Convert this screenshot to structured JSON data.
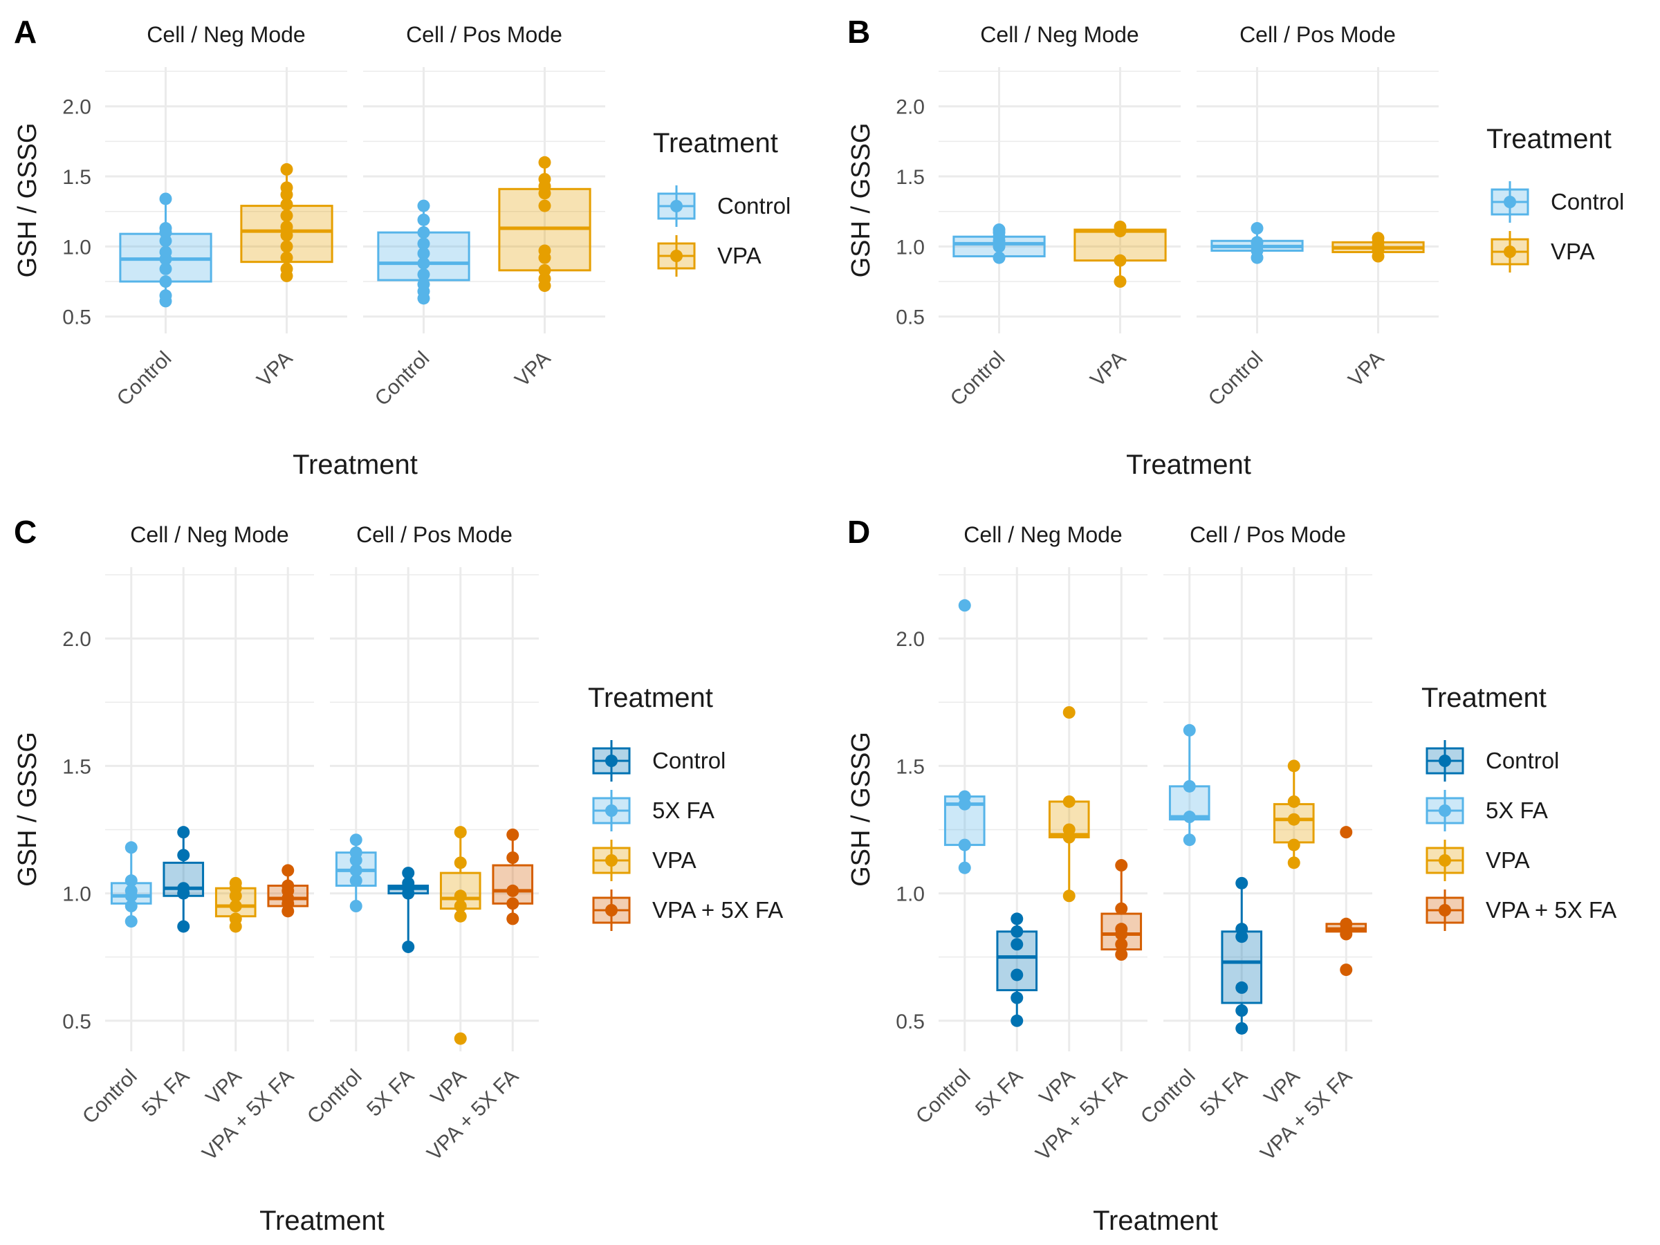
{
  "colors": {
    "control_light": "#56B4E9",
    "vpa": "#E69F00",
    "control_dark": "#0072B2",
    "vpa_fa": "#D55E00",
    "grid": "#EBEBEB",
    "text": "#1a1a1a",
    "tick": "#4d4d4d"
  },
  "chart_data": [
    {
      "type": "boxplot",
      "panel_label": "A",
      "ylabel": "GSH / GSSG",
      "xlabel": "Treatment",
      "ylim": [
        0.38,
        2.28
      ],
      "yticks": [
        "0.5",
        "1.0",
        "1.5",
        "2.0"
      ],
      "legend": {
        "title": "Treatment",
        "entries": [
          "Control",
          "VPA"
        ]
      },
      "facets": [
        {
          "title": "Cell / Neg Mode",
          "categories": [
            "Control",
            "VPA"
          ],
          "groups": [
            {
              "color": "control_light",
              "q1": 0.75,
              "median": 0.91,
              "q3": 1.09,
              "wlo": 0.61,
              "whi": 1.34,
              "points": [
                0.61,
                0.65,
                0.75,
                0.84,
                0.91,
                0.96,
                1.04,
                1.1,
                1.13,
                1.34
              ]
            },
            {
              "color": "vpa",
              "q1": 0.89,
              "median": 1.11,
              "q3": 1.29,
              "wlo": 0.79,
              "whi": 1.55,
              "points": [
                0.79,
                0.84,
                0.92,
                1.0,
                1.08,
                1.14,
                1.22,
                1.3,
                1.37,
                1.42,
                1.55
              ]
            }
          ]
        },
        {
          "title": "Cell / Pos Mode",
          "categories": [
            "Control",
            "VPA"
          ],
          "groups": [
            {
              "color": "control_light",
              "q1": 0.76,
              "median": 0.88,
              "q3": 1.1,
              "wlo": 0.63,
              "whi": 1.29,
              "points": [
                0.63,
                0.68,
                0.73,
                0.8,
                0.88,
                0.95,
                1.02,
                1.1,
                1.19,
                1.29
              ]
            },
            {
              "color": "vpa",
              "q1": 0.83,
              "median": 1.13,
              "q3": 1.41,
              "wlo": 0.72,
              "whi": 1.6,
              "points": [
                0.72,
                0.77,
                0.83,
                0.92,
                0.97,
                1.29,
                1.38,
                1.43,
                1.48,
                1.6
              ]
            }
          ]
        }
      ]
    },
    {
      "type": "boxplot",
      "panel_label": "B",
      "ylabel": "GSH / GSSG",
      "xlabel": "Treatment",
      "ylim": [
        0.38,
        2.28
      ],
      "yticks": [
        "0.5",
        "1.0",
        "1.5",
        "2.0"
      ],
      "legend": {
        "title": "Treatment",
        "entries": [
          "Control",
          "VPA"
        ]
      },
      "facets": [
        {
          "title": "Cell / Neg Mode",
          "categories": [
            "Control",
            "VPA"
          ],
          "groups": [
            {
              "color": "control_light",
              "q1": 0.93,
              "median": 1.02,
              "q3": 1.07,
              "wlo": 0.92,
              "whi": 1.12,
              "points": [
                0.92,
                1.0,
                1.04,
                1.07,
                1.1,
                1.12
              ]
            },
            {
              "color": "vpa",
              "q1": 0.9,
              "median": 1.11,
              "q3": 1.12,
              "wlo": 0.75,
              "whi": 1.14,
              "points": [
                0.75,
                0.9,
                1.11,
                1.14
              ]
            }
          ]
        },
        {
          "title": "Cell / Pos Mode",
          "categories": [
            "Control",
            "VPA"
          ],
          "groups": [
            {
              "color": "control_light",
              "q1": 0.97,
              "median": 1.0,
              "q3": 1.04,
              "wlo": 0.92,
              "whi": 1.13,
              "points": [
                0.92,
                0.97,
                1.0,
                1.03,
                1.13
              ]
            },
            {
              "color": "vpa",
              "q1": 0.96,
              "median": 0.99,
              "q3": 1.03,
              "wlo": 0.93,
              "whi": 1.06,
              "points": [
                0.93,
                0.97,
                1.0,
                1.03,
                1.06
              ]
            }
          ]
        }
      ]
    },
    {
      "type": "boxplot",
      "panel_label": "C",
      "ylabel": "GSH / GSSG",
      "xlabel": "Treatment",
      "ylim": [
        0.38,
        2.28
      ],
      "yticks": [
        "0.5",
        "1.0",
        "1.5",
        "2.0"
      ],
      "legend": {
        "title": "Treatment",
        "entries": [
          "Control",
          "5X FA",
          "VPA",
          "VPA + 5X FA"
        ]
      },
      "facets": [
        {
          "title": "Cell / Neg Mode",
          "categories": [
            "Control",
            "5X FA",
            "VPA",
            "VPA + 5X FA"
          ],
          "groups": [
            {
              "color": "control_light",
              "q1": 0.96,
              "median": 0.99,
              "q3": 1.04,
              "wlo": 0.89,
              "whi": 1.18,
              "points": [
                0.89,
                0.95,
                0.99,
                1.01,
                1.05,
                1.18
              ]
            },
            {
              "color": "control_dark",
              "q1": 0.99,
              "median": 1.02,
              "q3": 1.12,
              "wlo": 0.87,
              "whi": 1.24,
              "points": [
                0.87,
                1.0,
                1.02,
                1.15,
                1.24
              ]
            },
            {
              "color": "vpa",
              "q1": 0.91,
              "median": 0.95,
              "q3": 1.02,
              "wlo": 0.87,
              "whi": 1.04,
              "points": [
                0.87,
                0.9,
                0.95,
                0.99,
                1.02,
                1.04
              ]
            },
            {
              "color": "vpa_fa",
              "q1": 0.95,
              "median": 0.98,
              "q3": 1.03,
              "wlo": 0.93,
              "whi": 1.09,
              "points": [
                0.93,
                0.96,
                0.98,
                1.01,
                1.03,
                1.09
              ]
            }
          ]
        },
        {
          "title": "Cell / Pos Mode",
          "categories": [
            "Control",
            "5X FA",
            "VPA",
            "VPA + 5X FA"
          ],
          "groups": [
            {
              "color": "control_light",
              "q1": 1.03,
              "median": 1.09,
              "q3": 1.16,
              "wlo": 0.95,
              "whi": 1.21,
              "points": [
                0.95,
                1.05,
                1.09,
                1.13,
                1.16,
                1.21
              ]
            },
            {
              "color": "control_dark",
              "q1": 1.0,
              "median": 1.02,
              "q3": 1.03,
              "wlo": 0.79,
              "whi": 1.08,
              "points": [
                0.79,
                1.0,
                1.02,
                1.04,
                1.08
              ]
            },
            {
              "color": "vpa",
              "q1": 0.94,
              "median": 0.98,
              "q3": 1.08,
              "wlo": 0.91,
              "whi": 1.24,
              "points": [
                0.43,
                0.91,
                0.95,
                0.99,
                1.12,
                1.24
              ]
            },
            {
              "color": "vpa_fa",
              "q1": 0.96,
              "median": 1.01,
              "q3": 1.11,
              "wlo": 0.9,
              "whi": 1.23,
              "points": [
                0.9,
                0.96,
                1.01,
                1.14,
                1.23
              ]
            }
          ]
        }
      ]
    },
    {
      "type": "boxplot",
      "panel_label": "D",
      "ylabel": "GSH / GSSG",
      "xlabel": "Treatment",
      "ylim": [
        0.38,
        2.28
      ],
      "yticks": [
        "0.5",
        "1.0",
        "1.5",
        "2.0"
      ],
      "legend": {
        "title": "Treatment",
        "entries": [
          "Control",
          "5X FA",
          "VPA",
          "VPA + 5X FA"
        ]
      },
      "facets": [
        {
          "title": "Cell / Neg Mode",
          "categories": [
            "Control",
            "5X FA",
            "VPA",
            "VPA + 5X FA"
          ],
          "groups": [
            {
              "color": "control_light",
              "q1": 1.19,
              "median": 1.35,
              "q3": 1.38,
              "wlo": 1.1,
              "whi": 1.38,
              "points": [
                1.1,
                1.19,
                1.35,
                1.38,
                2.13
              ]
            },
            {
              "color": "control_dark",
              "q1": 0.62,
              "median": 0.75,
              "q3": 0.85,
              "wlo": 0.5,
              "whi": 0.9,
              "points": [
                0.5,
                0.59,
                0.68,
                0.8,
                0.85,
                0.9
              ]
            },
            {
              "color": "vpa",
              "q1": 1.22,
              "median": 1.23,
              "q3": 1.36,
              "wlo": 0.99,
              "whi": 1.36,
              "points": [
                0.99,
                1.22,
                1.25,
                1.36,
                1.71
              ]
            },
            {
              "color": "vpa_fa",
              "q1": 0.78,
              "median": 0.84,
              "q3": 0.92,
              "wlo": 0.76,
              "whi": 1.11,
              "points": [
                0.76,
                0.8,
                0.84,
                0.86,
                0.94,
                1.11
              ]
            }
          ]
        },
        {
          "title": "Cell / Pos Mode",
          "categories": [
            "Control",
            "5X FA",
            "VPA",
            "VPA + 5X FA"
          ],
          "groups": [
            {
              "color": "control_light",
              "q1": 1.29,
              "median": 1.3,
              "q3": 1.42,
              "wlo": 1.21,
              "whi": 1.64,
              "points": [
                1.21,
                1.3,
                1.42,
                1.64
              ]
            },
            {
              "color": "control_dark",
              "q1": 0.57,
              "median": 0.73,
              "q3": 0.85,
              "wlo": 0.47,
              "whi": 1.04,
              "points": [
                0.47,
                0.54,
                0.63,
                0.83,
                0.86,
                1.04
              ]
            },
            {
              "color": "vpa",
              "q1": 1.2,
              "median": 1.29,
              "q3": 1.35,
              "wlo": 1.12,
              "whi": 1.5,
              "points": [
                1.12,
                1.19,
                1.29,
                1.36,
                1.5
              ]
            },
            {
              "color": "vpa_fa",
              "q1": 0.85,
              "median": 0.86,
              "q3": 0.88,
              "wlo": 0.84,
              "whi": 0.88,
              "points": [
                0.7,
                0.84,
                0.86,
                0.88,
                1.24
              ]
            }
          ]
        }
      ]
    }
  ]
}
